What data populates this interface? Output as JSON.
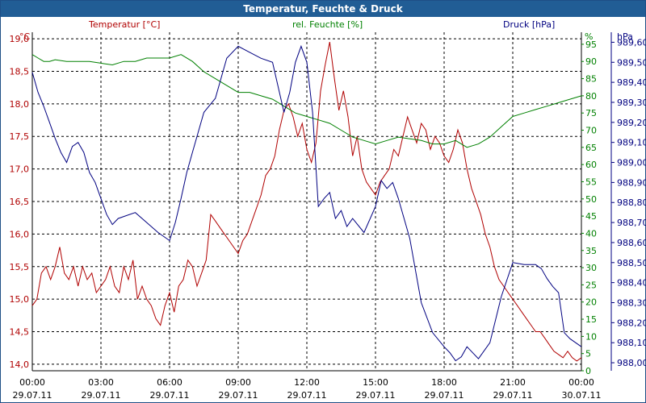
{
  "title": "Temperatur, Feuchte & Druck",
  "chart_data": {
    "type": "line",
    "grid": true,
    "axes": {
      "temperature": {
        "label": "Temperatur [°C]",
        "unit": "°C",
        "ylim": [
          13.9,
          19.1
        ],
        "ticks": [
          "14,0",
          "14,5",
          "15,0",
          "15,5",
          "16,0",
          "16,5",
          "17,0",
          "17,5",
          "18,0",
          "18,5",
          "19,0"
        ],
        "color": "#b00000"
      },
      "humidity": {
        "label": "rel. Feuchte [%]",
        "unit": "%",
        "ylim": [
          0,
          98.5
        ],
        "ticks": [
          "0",
          "5",
          "10",
          "15",
          "20",
          "25",
          "30",
          "35",
          "40",
          "45",
          "50",
          "55",
          "60",
          "65",
          "70",
          "75",
          "80",
          "85",
          "90",
          "95"
        ],
        "color": "#008000"
      },
      "pressure": {
        "label": "Druck [hPa]",
        "unit": "hPa",
        "ylim": [
          987.96,
          989.65
        ],
        "ticks": [
          "988,00",
          "988,10",
          "988,20",
          "988,30",
          "988,40",
          "988,50",
          "988,60",
          "988,70",
          "988,80",
          "988,90",
          "989,00",
          "989,10",
          "989,20",
          "989,30",
          "989,40",
          "989,50",
          "989,60"
        ],
        "color": "#000080"
      },
      "x": {
        "tick_times": [
          "00:00",
          "03:00",
          "06:00",
          "09:00",
          "12:00",
          "15:00",
          "18:00",
          "21:00",
          "00:00"
        ],
        "tick_dates": [
          "29.07.11",
          "29.07.11",
          "29.07.11",
          "29.07.11",
          "29.07.11",
          "29.07.11",
          "29.07.11",
          "29.07.11",
          "30.07.11"
        ],
        "range_hours": [
          0,
          24
        ]
      }
    },
    "series": [
      {
        "name": "Temperatur [°C]",
        "axis": "temperature",
        "color": "#b00000",
        "x": [
          0,
          0.2,
          0.4,
          0.6,
          0.8,
          1.0,
          1.2,
          1.4,
          1.6,
          1.8,
          2.0,
          2.2,
          2.4,
          2.6,
          2.8,
          3.0,
          3.2,
          3.4,
          3.6,
          3.8,
          4.0,
          4.2,
          4.4,
          4.6,
          4.8,
          5.0,
          5.2,
          5.4,
          5.6,
          5.8,
          6.0,
          6.2,
          6.4,
          6.6,
          6.8,
          7.0,
          7.2,
          7.4,
          7.6,
          7.8,
          8.0,
          8.2,
          8.4,
          8.6,
          8.8,
          9.0,
          9.2,
          9.4,
          9.6,
          9.8,
          10.0,
          10.2,
          10.4,
          10.6,
          10.8,
          11.0,
          11.2,
          11.4,
          11.6,
          11.8,
          12.0,
          12.2,
          12.4,
          12.6,
          12.8,
          13.0,
          13.2,
          13.4,
          13.6,
          13.8,
          14.0,
          14.2,
          14.4,
          14.6,
          14.8,
          15.0,
          15.2,
          15.4,
          15.6,
          15.8,
          16.0,
          16.2,
          16.4,
          16.6,
          16.8,
          17.0,
          17.2,
          17.4,
          17.6,
          17.8,
          18.0,
          18.2,
          18.4,
          18.6,
          18.8,
          19.0,
          19.2,
          19.4,
          19.6,
          19.8,
          20.0,
          20.2,
          20.4,
          20.6,
          20.8,
          21.0,
          21.2,
          21.4,
          21.6,
          21.8,
          22.0,
          22.2,
          22.4,
          22.6,
          22.8,
          23.0,
          23.2,
          23.4,
          23.6,
          23.8,
          24.0
        ],
        "values": [
          14.9,
          15.0,
          15.4,
          15.5,
          15.3,
          15.5,
          15.8,
          15.4,
          15.3,
          15.5,
          15.2,
          15.5,
          15.3,
          15.4,
          15.1,
          15.2,
          15.3,
          15.5,
          15.2,
          15.1,
          15.5,
          15.3,
          15.6,
          15.0,
          15.2,
          15.0,
          14.9,
          14.7,
          14.6,
          14.9,
          15.1,
          14.8,
          15.2,
          15.3,
          15.6,
          15.5,
          15.2,
          15.4,
          15.6,
          16.3,
          16.2,
          16.1,
          16.0,
          15.9,
          15.8,
          15.7,
          15.9,
          16.0,
          16.2,
          16.4,
          16.6,
          16.9,
          17.0,
          17.2,
          17.6,
          17.9,
          18.0,
          17.8,
          17.5,
          17.7,
          17.3,
          17.1,
          17.4,
          18.2,
          18.6,
          18.95,
          18.4,
          17.9,
          18.2,
          17.8,
          17.2,
          17.5,
          17.0,
          16.8,
          16.7,
          16.6,
          16.8,
          16.9,
          17.0,
          17.3,
          17.2,
          17.5,
          17.8,
          17.6,
          17.4,
          17.7,
          17.6,
          17.3,
          17.5,
          17.4,
          17.2,
          17.1,
          17.3,
          17.6,
          17.4,
          17.0,
          16.7,
          16.5,
          16.3,
          16.0,
          15.8,
          15.5,
          15.3,
          15.2,
          15.1,
          15.0,
          14.9,
          14.8,
          14.7,
          14.6,
          14.5,
          14.5,
          14.4,
          14.3,
          14.2,
          14.15,
          14.1,
          14.2,
          14.1,
          14.05,
          14.1
        ]
      },
      {
        "name": "rel. Feuchte [%]",
        "axis": "humidity",
        "color": "#008000",
        "x": [
          0,
          0.25,
          0.5,
          0.75,
          1.0,
          1.5,
          2.0,
          2.5,
          3.0,
          3.5,
          4.0,
          4.5,
          5.0,
          5.5,
          6.0,
          6.5,
          7.0,
          7.5,
          8.0,
          8.5,
          9.0,
          9.5,
          10.0,
          10.5,
          11.0,
          11.5,
          12.0,
          12.5,
          13.0,
          13.5,
          14.0,
          14.5,
          15.0,
          15.5,
          16.0,
          16.5,
          17.0,
          17.5,
          18.0,
          18.5,
          19.0,
          19.5,
          20.0,
          20.5,
          21.0,
          21.5,
          22.0,
          22.5,
          23.0,
          23.5,
          24.0
        ],
        "values": [
          92,
          91,
          90,
          90,
          90.5,
          90,
          90,
          90,
          89.5,
          89,
          90,
          90,
          91,
          91,
          91,
          92,
          90,
          87,
          85,
          83,
          81,
          81,
          80,
          79,
          77,
          75,
          74,
          73,
          72,
          70,
          68,
          67,
          66,
          67,
          68,
          67.5,
          67,
          66,
          66,
          67,
          65,
          66,
          68,
          71,
          74,
          75,
          76,
          77,
          78,
          79,
          80
        ]
      },
      {
        "name": "Druck [hPa]",
        "axis": "pressure",
        "color": "#000080",
        "x": [
          0,
          0.25,
          0.5,
          0.75,
          1.0,
          1.25,
          1.5,
          1.75,
          2.0,
          2.25,
          2.5,
          2.75,
          3.0,
          3.25,
          3.5,
          3.75,
          4.0,
          4.5,
          5.0,
          5.5,
          6.0,
          6.25,
          6.5,
          6.75,
          7.0,
          7.5,
          8.0,
          8.5,
          9.0,
          9.5,
          10.0,
          10.5,
          11.0,
          11.25,
          11.5,
          11.75,
          12.0,
          12.25,
          12.5,
          12.75,
          13.0,
          13.25,
          13.5,
          13.75,
          14.0,
          14.5,
          15.0,
          15.25,
          15.5,
          15.75,
          16.0,
          16.5,
          17.0,
          17.5,
          18.0,
          18.25,
          18.5,
          18.75,
          19.0,
          19.5,
          20.0,
          20.5,
          21.0,
          21.5,
          22.0,
          22.25,
          22.5,
          22.75,
          23.0,
          23.25,
          23.5,
          23.75,
          24.0
        ],
        "values": [
          989.45,
          989.35,
          989.28,
          989.2,
          989.12,
          989.05,
          989.0,
          989.08,
          989.1,
          989.05,
          988.95,
          988.9,
          988.82,
          988.74,
          988.69,
          988.72,
          988.73,
          988.75,
          988.7,
          988.65,
          988.61,
          988.7,
          988.82,
          988.95,
          989.05,
          989.25,
          989.32,
          989.52,
          989.58,
          989.55,
          989.52,
          989.5,
          989.25,
          989.35,
          989.5,
          989.58,
          989.5,
          989.25,
          988.78,
          988.82,
          988.85,
          988.72,
          988.76,
          988.68,
          988.72,
          988.65,
          988.78,
          988.91,
          988.87,
          988.9,
          988.82,
          988.62,
          988.3,
          988.15,
          988.08,
          988.05,
          988.01,
          988.03,
          988.08,
          988.02,
          988.1,
          988.33,
          988.5,
          988.49,
          988.49,
          988.47,
          988.42,
          988.38,
          988.35,
          988.15,
          988.12,
          988.1,
          988.08
        ]
      }
    ]
  }
}
